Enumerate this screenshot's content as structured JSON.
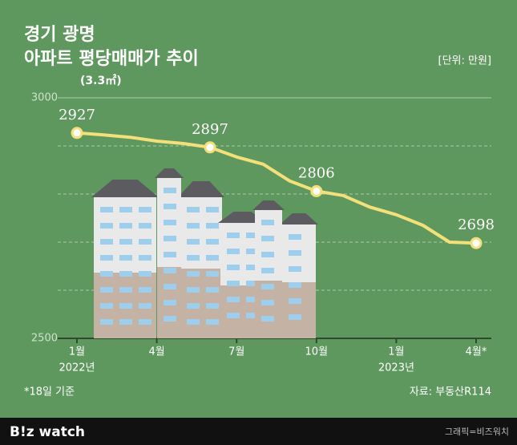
{
  "chart_data": {
    "type": "line",
    "title": [
      "경기 광명",
      "아파트 평당매매가 추이"
    ],
    "subtitle": "(3.3㎡)",
    "unit": "[단위: 만원]",
    "categories": [
      "1월",
      null,
      null,
      "4월",
      null,
      null,
      "7월",
      null,
      null,
      "10월",
      null,
      null,
      "1월",
      null,
      null,
      "4월*"
    ],
    "year_labels": [
      {
        "index": 0,
        "label": "2022년"
      },
      {
        "index": 12,
        "label": "2023년"
      }
    ],
    "series": [
      {
        "name": "평당매매가",
        "color": "#f3e07a",
        "values": [
          2927,
          2923,
          2918,
          2910,
          2905,
          2897,
          2877,
          2862,
          2827,
          2806,
          2797,
          2773,
          2757,
          2735,
          2700,
          2698
        ]
      }
    ],
    "labeled_points": [
      0,
      5,
      9,
      15
    ],
    "ylim": [
      2500,
      3000
    ],
    "yticks": [
      2500,
      3000
    ],
    "ygrid": [
      2600,
      2700,
      2800,
      2900
    ],
    "note": "*18일 기준",
    "source": "자료: 부동산R114",
    "footer": {
      "brand": "B!z watch",
      "credit": "그래픽=비즈워치"
    }
  }
}
